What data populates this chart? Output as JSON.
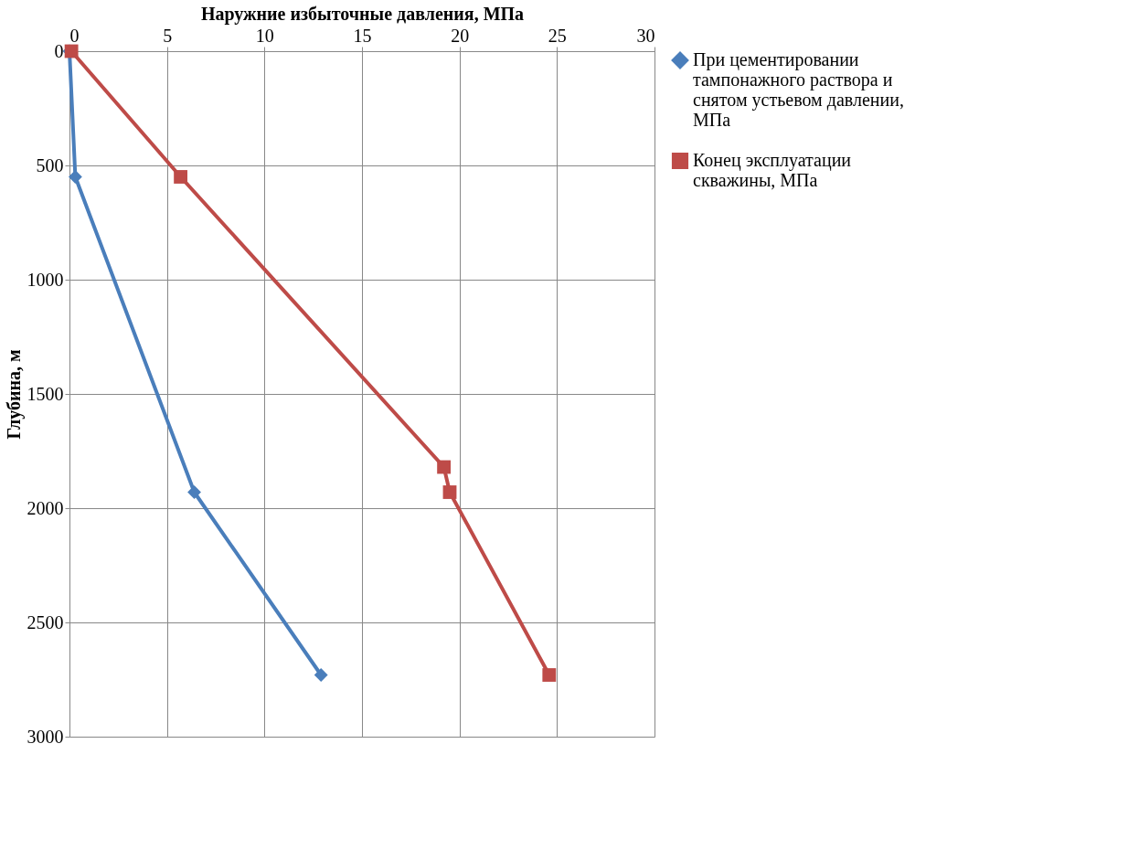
{
  "chart_data": {
    "type": "line",
    "xlabel": "Наружние избыточные давления, МПа",
    "ylabel": "Глубина, м",
    "xlim": [
      0,
      30
    ],
    "xticks": [
      0,
      5,
      10,
      15,
      20,
      25,
      30
    ],
    "ylim": [
      3000,
      0
    ],
    "yticks": [
      0,
      500,
      1000,
      1500,
      2000,
      2500,
      3000
    ],
    "grid": true,
    "legend": "right",
    "line_style": "solid",
    "series": [
      {
        "name": "При цементировании тампонажного раствора и снятом устьевом давлении, МПа",
        "color": "#4a7ebb",
        "marker": "diamond",
        "x": [
          0,
          0.3,
          6.4,
          12.9
        ],
        "values": [
          0,
          550,
          1930,
          2730
        ]
      },
      {
        "name": "Конец эксплуатации скважины, МПа",
        "color": "#be4b48",
        "marker": "square",
        "x": [
          0.1,
          5.7,
          19.2,
          19.5,
          24.6
        ],
        "values": [
          0,
          550,
          1820,
          1930,
          2730
        ]
      }
    ]
  }
}
